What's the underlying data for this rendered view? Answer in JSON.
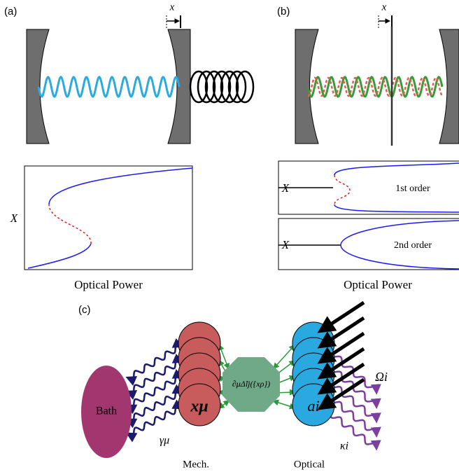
{
  "panel_a": {
    "label": "(a)",
    "displacement": "x",
    "y_axis": "X",
    "x_axis": "Optical Power"
  },
  "panel_b": {
    "label": "(b)",
    "displacement": "x",
    "plots": [
      {
        "y_axis": "X",
        "caption": "1st order"
      },
      {
        "y_axis": "X",
        "caption": "2nd order"
      }
    ],
    "x_axis": "Optical Power"
  },
  "panel_c": {
    "label": "(c)",
    "bath": "Bath",
    "bath_coupling": "γμ",
    "mech_mode": "xμ",
    "mech_caption": "Mech.",
    "coupling": "∂μΔ̃ij({xρ})",
    "optical_mode": "ai",
    "drive": "Ωi",
    "loss": "κi",
    "optical_caption": "Optical"
  }
}
